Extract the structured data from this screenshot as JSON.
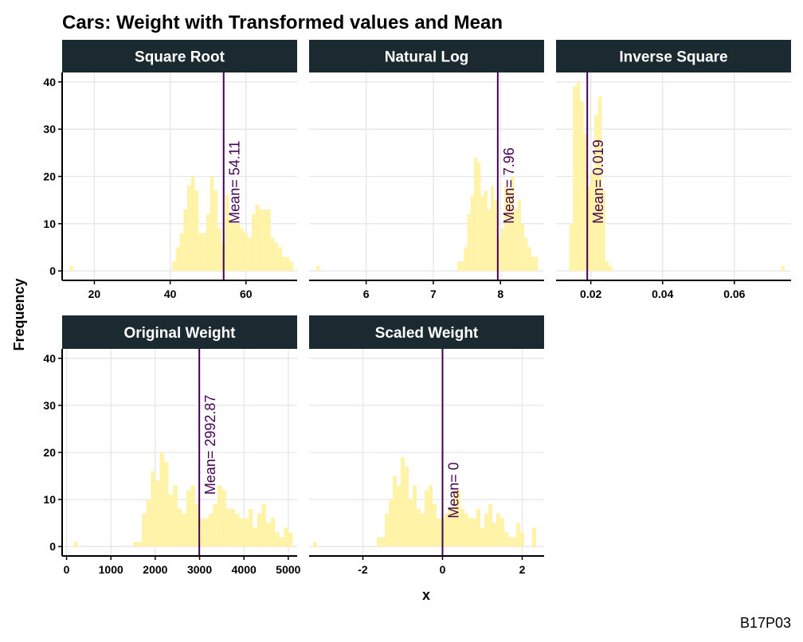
{
  "chart_data": {
    "type": "histogram",
    "title": "Cars: Weight with Transformed values and Mean",
    "xlabel": "x",
    "ylabel": "Frequency",
    "caption": "B17P03",
    "colors": {
      "bar": "#FFF3A8",
      "mean_line": "#440154",
      "strip_bg": "#1B2A30",
      "grid": "#E6E6E6"
    },
    "grid": true,
    "shared_y": {
      "ylim": [
        -2,
        42
      ],
      "ticks": [
        0,
        10,
        20,
        30,
        40
      ]
    },
    "panels": [
      {
        "name": "Square Root",
        "xlim": [
          11.5,
          73.5
        ],
        "xticks": [
          20,
          40,
          60
        ],
        "mean": 54.11,
        "mean_label": "Mean= 54.11",
        "mean_label_y": 10,
        "bin_width": 1.0,
        "bins": [
          [
            14,
            1
          ],
          [
            41,
            2
          ],
          [
            42,
            5
          ],
          [
            43,
            8
          ],
          [
            44,
            13
          ],
          [
            45,
            18
          ],
          [
            46,
            20
          ],
          [
            47,
            17
          ],
          [
            48,
            8
          ],
          [
            49,
            8
          ],
          [
            50,
            12
          ],
          [
            51,
            20
          ],
          [
            52,
            17
          ],
          [
            53,
            9
          ],
          [
            54,
            6
          ],
          [
            55,
            16
          ],
          [
            56,
            11
          ],
          [
            57,
            10
          ],
          [
            58,
            10
          ],
          [
            59,
            9
          ],
          [
            60,
            8
          ],
          [
            61,
            7
          ],
          [
            62,
            12
          ],
          [
            63,
            14
          ],
          [
            64,
            13
          ],
          [
            65,
            13
          ],
          [
            66,
            13
          ],
          [
            67,
            7
          ],
          [
            68,
            6
          ],
          [
            69,
            5
          ],
          [
            70,
            3
          ],
          [
            71,
            3
          ],
          [
            72,
            2
          ]
        ]
      },
      {
        "name": "Natural Log",
        "xlim": [
          5.15,
          8.65
        ],
        "xticks": [
          6,
          7,
          8
        ],
        "mean": 7.96,
        "mean_label": "Mean= 7.96",
        "mean_label_y": 10,
        "bin_width": 0.05,
        "bins": [
          [
            5.28,
            1
          ],
          [
            7.38,
            2
          ],
          [
            7.43,
            2
          ],
          [
            7.48,
            5
          ],
          [
            7.53,
            12
          ],
          [
            7.58,
            16
          ],
          [
            7.63,
            24
          ],
          [
            7.68,
            23
          ],
          [
            7.73,
            16
          ],
          [
            7.78,
            17
          ],
          [
            7.83,
            13
          ],
          [
            7.88,
            18
          ],
          [
            7.93,
            15
          ],
          [
            7.98,
            7
          ],
          [
            8.03,
            9
          ],
          [
            8.08,
            18
          ],
          [
            8.13,
            17
          ],
          [
            8.18,
            20
          ],
          [
            8.23,
            13
          ],
          [
            8.28,
            15
          ],
          [
            8.33,
            10
          ],
          [
            8.38,
            7
          ],
          [
            8.43,
            5
          ],
          [
            8.48,
            3
          ],
          [
            8.53,
            3
          ]
        ]
      },
      {
        "name": "Inverse Square",
        "xlim": [
          0.0103,
          0.0758
        ],
        "xticks": [
          0.02,
          0.04,
          0.06
        ],
        "mean": 0.019,
        "mean_label": "Mean= 0.019",
        "mean_label_y": 10,
        "bin_width": 0.001,
        "bins": [
          [
            0.0145,
            10
          ],
          [
            0.0155,
            39
          ],
          [
            0.0165,
            40
          ],
          [
            0.0175,
            36
          ],
          [
            0.0185,
            29
          ],
          [
            0.0195,
            18
          ],
          [
            0.0205,
            21
          ],
          [
            0.0215,
            33
          ],
          [
            0.0225,
            37
          ],
          [
            0.0235,
            17
          ],
          [
            0.0245,
            2
          ],
          [
            0.0255,
            1
          ],
          [
            0.0735,
            1
          ]
        ]
      },
      {
        "name": "Original Weight",
        "xlim": [
          -100,
          5200
        ],
        "xticks": [
          0,
          1000,
          2000,
          3000,
          4000,
          5000
        ],
        "mean": 2992.87,
        "mean_label": "Mean= 2992.87",
        "mean_label_y": 11,
        "bin_width": 100,
        "bins": [
          [
            200,
            1
          ],
          [
            1550,
            1
          ],
          [
            1650,
            1
          ],
          [
            1750,
            7
          ],
          [
            1850,
            10
          ],
          [
            1950,
            16
          ],
          [
            2050,
            14
          ],
          [
            2150,
            20
          ],
          [
            2250,
            18
          ],
          [
            2350,
            11
          ],
          [
            2450,
            13
          ],
          [
            2550,
            8
          ],
          [
            2650,
            7
          ],
          [
            2750,
            12
          ],
          [
            2850,
            13
          ],
          [
            2950,
            9
          ],
          [
            3050,
            6
          ],
          [
            3150,
            6
          ],
          [
            3250,
            7
          ],
          [
            3350,
            9
          ],
          [
            3450,
            13
          ],
          [
            3550,
            12
          ],
          [
            3650,
            8
          ],
          [
            3750,
            8
          ],
          [
            3850,
            7
          ],
          [
            3950,
            6
          ],
          [
            4050,
            6
          ],
          [
            4150,
            8
          ],
          [
            4250,
            4
          ],
          [
            4350,
            7
          ],
          [
            4450,
            9
          ],
          [
            4550,
            5
          ],
          [
            4650,
            6
          ],
          [
            4750,
            3
          ],
          [
            4850,
            2
          ],
          [
            4950,
            4
          ],
          [
            5050,
            3
          ]
        ]
      },
      {
        "name": "Scaled Weight",
        "xlim": [
          -3.35,
          2.55
        ],
        "xticks": [
          -2,
          0,
          2
        ],
        "mean": 0,
        "mean_label": "Mean= 0",
        "mean_label_y": 6,
        "bin_width": 0.1,
        "bins": [
          [
            -3.2,
            1
          ],
          [
            -1.6,
            2
          ],
          [
            -1.5,
            2
          ],
          [
            -1.4,
            7
          ],
          [
            -1.3,
            10
          ],
          [
            -1.2,
            15
          ],
          [
            -1.1,
            13
          ],
          [
            -1.0,
            19
          ],
          [
            -0.9,
            17
          ],
          [
            -0.8,
            10
          ],
          [
            -0.7,
            13
          ],
          [
            -0.6,
            8
          ],
          [
            -0.5,
            7
          ],
          [
            -0.4,
            12
          ],
          [
            -0.3,
            13
          ],
          [
            -0.2,
            9
          ],
          [
            -0.1,
            6
          ],
          [
            0.0,
            6
          ],
          [
            0.1,
            7
          ],
          [
            0.2,
            8
          ],
          [
            0.3,
            12
          ],
          [
            0.4,
            12
          ],
          [
            0.5,
            8
          ],
          [
            0.6,
            7
          ],
          [
            0.7,
            6
          ],
          [
            0.8,
            6
          ],
          [
            0.9,
            8
          ],
          [
            1.0,
            4
          ],
          [
            1.1,
            7
          ],
          [
            1.2,
            9
          ],
          [
            1.3,
            5
          ],
          [
            1.4,
            7
          ],
          [
            1.5,
            6
          ],
          [
            1.6,
            3
          ],
          [
            1.7,
            2
          ],
          [
            1.8,
            2
          ],
          [
            1.9,
            5
          ],
          [
            2.0,
            3
          ],
          [
            2.3,
            4
          ]
        ]
      }
    ]
  }
}
